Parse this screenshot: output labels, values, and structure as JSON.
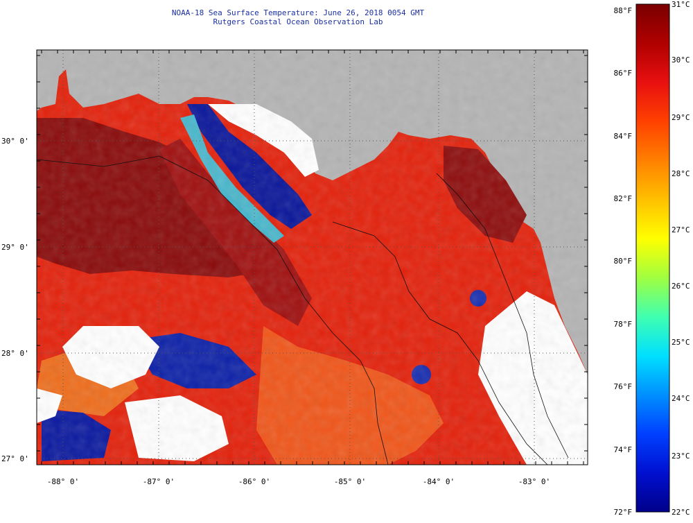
{
  "header": {
    "line1": "NOAA-18 Sea Surface Temperature:  June 26, 2018 0054 GMT",
    "line2": "Rutgers Coastal Ocean Observation Lab"
  },
  "map": {
    "lat_labels": [
      "30° 0'",
      "29° 0'",
      "28° 0'",
      "27° 0'"
    ],
    "lon_labels": [
      "-88° 0'",
      "-87° 0'",
      "-86° 0'",
      "-85° 0'",
      "-84° 0'",
      "-83° 0'"
    ],
    "colors": {
      "land": "#b4b4b4",
      "cloud": "#ffffff",
      "warm_dark": "#8c0a0a",
      "warm": "#d41a0a",
      "hot": "#ee2a10",
      "orange": "#f25a12",
      "cold": "#0a1a9a",
      "cyan": "#30d0e0",
      "yellow": "#e8e020"
    }
  },
  "colorbar": {
    "f_labels": [
      "88°F",
      "86°F",
      "84°F",
      "82°F",
      "80°F",
      "78°F",
      "76°F",
      "74°F",
      "72°F"
    ],
    "c_labels": [
      "31°C",
      "30°C",
      "29°C",
      "28°C",
      "27°C",
      "26°C",
      "25°C",
      "24°C",
      "23°C",
      "22°C"
    ],
    "stops": [
      "#7a0000",
      "#b00000",
      "#e81010",
      "#ff4000",
      "#ff8000",
      "#ffc000",
      "#ffff00",
      "#a0ff40",
      "#40ffb0",
      "#00e0ff",
      "#0090ff",
      "#0040ff",
      "#0010d0",
      "#00008a"
    ]
  }
}
